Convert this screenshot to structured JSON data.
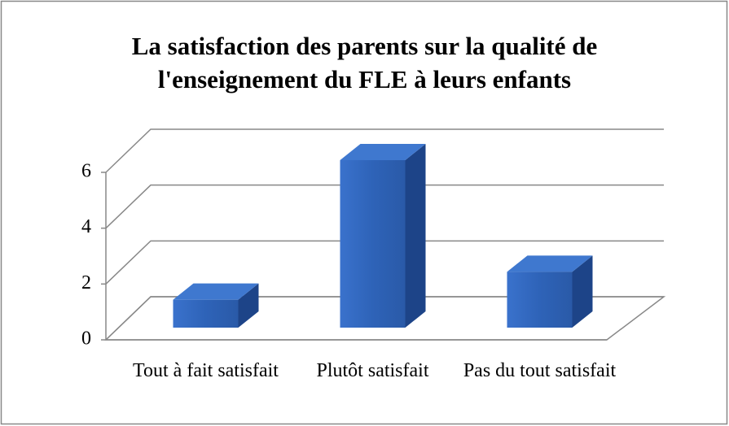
{
  "chart_data": {
    "type": "bar3d",
    "title": "La satisfaction des parents sur la qualité de l'enseignement du FLE à leurs enfants",
    "categories": [
      "Tout à fait satisfait",
      "Plutôt satisfait",
      "Pas du tout satisfait"
    ],
    "values": [
      1,
      6,
      2
    ],
    "color": "#2e63b8",
    "ylim": [
      0,
      6
    ],
    "yticks": [
      0,
      2,
      4,
      6
    ],
    "grid": true
  }
}
